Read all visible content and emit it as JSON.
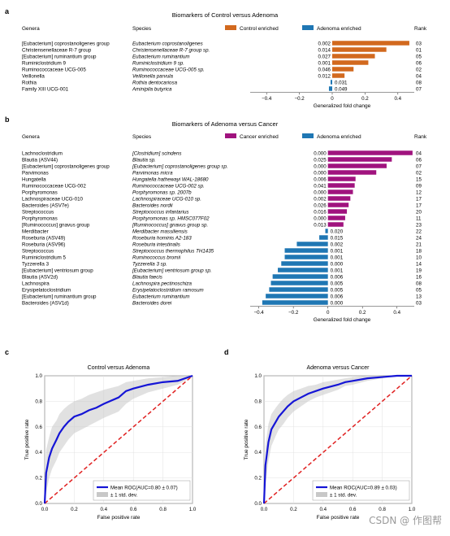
{
  "watermark": "CSDN @ 作图帮",
  "panels": {
    "a": {
      "letter": "a",
      "title": "Biomarkers of Control versus Adenoma",
      "headers": {
        "genera": "Genera",
        "species": "Species",
        "rank": "Rank"
      },
      "legend": [
        {
          "label": "Control enriched",
          "color": "#d2691e"
        },
        {
          "label": "Adenoma enriched",
          "color": "#1f77b4"
        }
      ],
      "xlabel": "Genera"
    },
    "b": {
      "letter": "b",
      "title": "Biomarkers of Adenoma versus Cancer",
      "headers": {
        "genera": "Genera",
        "species": "Species",
        "rank": "Rank"
      },
      "legend": [
        {
          "label": "Cancer enriched",
          "color": "#a0137e"
        },
        {
          "label": "Adenoma enriched",
          "color": "#1f77b4"
        }
      ]
    },
    "c": {
      "letter": "c"
    },
    "d": {
      "letter": "d"
    }
  },
  "chart_data": [
    {
      "type": "bar",
      "title": "Biomarkers of Control versus Adenoma",
      "xlabel": "Generalized fold change",
      "xlim": [
        -0.5,
        0.5
      ],
      "xticks": [
        -0.4,
        -0.2,
        0,
        0.2,
        0.4
      ],
      "positive_color": "#d2691e",
      "negative_color": "#1f77b4",
      "rows": [
        {
          "genus": "[Eubacterium] coprostanoligenes group",
          "species": "Eubacterium coprostanoligenes",
          "value": 0.47,
          "pvalue": "0.002",
          "rank": "03"
        },
        {
          "genus": "Christensenellaceae R-7 group",
          "species": "Christensenellaceae R-7 group sp.",
          "value": 0.33,
          "pvalue": "0.014",
          "rank": "01"
        },
        {
          "genus": "[Eubacterium] ruminantium group",
          "species": "Eubacterium ruminantium",
          "value": 0.26,
          "pvalue": "0.027",
          "rank": "05"
        },
        {
          "genus": "Ruminiclostridium 9",
          "species": "Ruminiclostridium 9 sp.",
          "value": 0.22,
          "pvalue": "0.001",
          "rank": "06"
        },
        {
          "genus": "Ruminococcaceae UCG-005",
          "species": "Ruminococcaceae UCG-005 sp.",
          "value": 0.13,
          "pvalue": "0.046",
          "rank": "02"
        },
        {
          "genus": "Veillonella",
          "species": "Veillonella parvula",
          "value": 0.075,
          "pvalue": "0.012",
          "rank": "04"
        },
        {
          "genus": "Rothia",
          "species": "Rothia dentocariosa",
          "value": -0.01,
          "pvalue": "0.031",
          "rank": "08"
        },
        {
          "genus": "Family XIII UCG-001",
          "species": "Aminipila butyrica",
          "value": -0.02,
          "pvalue": "0.049",
          "rank": "07"
        }
      ]
    },
    {
      "type": "bar",
      "title": "Biomarkers of Adenoma versus Cancer",
      "xlabel": "Generalized fold change",
      "xlim": [
        -0.45,
        0.5
      ],
      "xticks": [
        -0.4,
        -0.2,
        0,
        0.2,
        0.4
      ],
      "positive_color": "#a0137e",
      "negative_color": "#1f77b4",
      "rows": [
        {
          "genus": "Lachnoclostridium",
          "species": "[Clostridium] scindens",
          "value": 0.49,
          "pvalue": "0.000",
          "rank": "04"
        },
        {
          "genus": "Blautia (ASV44)",
          "species": "Blautia sp.",
          "value": 0.37,
          "pvalue": "0.025",
          "rank": "06"
        },
        {
          "genus": "[Eubacterium] coprostanoligenes group",
          "species": "[Eubacterium] coprostanoligenes group sp.",
          "value": 0.34,
          "pvalue": "0.000",
          "rank": "07"
        },
        {
          "genus": "Parvimonas",
          "species": "Parvimonas micra",
          "value": 0.28,
          "pvalue": "0.000",
          "rank": "02"
        },
        {
          "genus": "Hungatella",
          "species": "Hungatella hathewayi WAL-18680",
          "value": 0.16,
          "pvalue": "0.006",
          "rank": "15"
        },
        {
          "genus": "Ruminococcaceae UCG-002",
          "species": "Ruminococcaceae UCG-002 sp.",
          "value": 0.155,
          "pvalue": "0.041",
          "rank": "09"
        },
        {
          "genus": "Porphyromonas",
          "species": "Porphyromonas sp. 2007b",
          "value": 0.145,
          "pvalue": "0.000",
          "rank": "12"
        },
        {
          "genus": "Lachnospiraceae UCG-010",
          "species": "Lachnospiraceae UCG-010 sp.",
          "value": 0.13,
          "pvalue": "0.002",
          "rank": "17"
        },
        {
          "genus": "Bacteroides (ASV7e)",
          "species": "Bacteroides nordii",
          "value": 0.12,
          "pvalue": "0.026",
          "rank": "17"
        },
        {
          "genus": "Streptococcus",
          "species": "Streptococcus infantarius",
          "value": 0.11,
          "pvalue": "0.016",
          "rank": "20"
        },
        {
          "genus": "Porphyromonas",
          "species": "Porphyromonas sp. HMSC077F02",
          "value": 0.1,
          "pvalue": "0.000",
          "rank": "11"
        },
        {
          "genus": "[Ruminococcus] gnavus group",
          "species": "[Ruminococcus] gnavus group sp.",
          "value": 0.09,
          "pvalue": "0.013",
          "rank": "23"
        },
        {
          "genus": "Merdibacter",
          "species": "Merdibacter massiliensis",
          "value": -0.015,
          "pvalue": "0.020",
          "rank": "22"
        },
        {
          "genus": "Roseburia (ASV49)",
          "species": "Roseburia hominis A2-183",
          "value": -0.05,
          "pvalue": "0.015",
          "rank": "24"
        },
        {
          "genus": "Roseburia (ASV96)",
          "species": "Roseburia intestinalis",
          "value": -0.18,
          "pvalue": "0.002",
          "rank": "21"
        },
        {
          "genus": "Streptococcus",
          "species": "Streptococcus thermophilus TH1435",
          "value": -0.25,
          "pvalue": "0.001",
          "rank": "18"
        },
        {
          "genus": "Ruminiclostridium 5",
          "species": "Ruminococcus bromii",
          "value": -0.25,
          "pvalue": "0.001",
          "rank": "10"
        },
        {
          "genus": "Tyzzerella 3",
          "species": "Tyzzerella 3 sp.",
          "value": -0.27,
          "pvalue": "0.000",
          "rank": "14"
        },
        {
          "genus": "[Eubacterium] ventriosum group",
          "species": "[Eubacterium] ventriosum group sp.",
          "value": -0.29,
          "pvalue": "0.001",
          "rank": "19"
        },
        {
          "genus": "Blautia (ASV2d)",
          "species": "Blautia faecis",
          "value": -0.32,
          "pvalue": "0.006",
          "rank": "16"
        },
        {
          "genus": "Lachnospira",
          "species": "Lachnospira pectinoschiza",
          "value": -0.33,
          "pvalue": "0.005",
          "rank": "08"
        },
        {
          "genus": "Erysipelatoclostridium",
          "species": "Erysipelatoclostridium ramosum",
          "value": -0.34,
          "pvalue": "0.005",
          "rank": "05"
        },
        {
          "genus": "[Eubacterium] ruminantium group",
          "species": "Eubacterium ruminantium",
          "value": -0.36,
          "pvalue": "0.006",
          "rank": "13"
        },
        {
          "genus": "Bacteroides (ASV1d)",
          "species": "Bacteroides dorei",
          "value": -0.38,
          "pvalue": "0.000",
          "rank": "03"
        }
      ]
    },
    {
      "type": "line",
      "title": "Control versus Adenoma",
      "xlabel": "False positive rate",
      "ylabel": "True positive rate",
      "xlim": [
        0,
        1
      ],
      "ylim": [
        0,
        1
      ],
      "ticks": [
        0.0,
        0.2,
        0.4,
        0.6,
        0.8,
        1.0
      ],
      "legend": [
        "Mean ROC(AUC=0.80 ± 0.07)",
        "± 1 std. dev."
      ],
      "mean_color": "#1515d6",
      "chance_color": "#e02020",
      "mean_roc": {
        "x": [
          0,
          0.01,
          0.03,
          0.05,
          0.08,
          0.1,
          0.13,
          0.16,
          0.2,
          0.25,
          0.3,
          0.35,
          0.4,
          0.5,
          0.55,
          0.6,
          0.7,
          0.8,
          0.9,
          0.95,
          1.0
        ],
        "y": [
          0,
          0.24,
          0.36,
          0.43,
          0.5,
          0.55,
          0.6,
          0.64,
          0.68,
          0.7,
          0.73,
          0.75,
          0.78,
          0.83,
          0.88,
          0.9,
          0.93,
          0.95,
          0.96,
          0.98,
          1.0
        ]
      },
      "std_upper": [
        0.05,
        0.42,
        0.52,
        0.6,
        0.65,
        0.7,
        0.74,
        0.77,
        0.8,
        0.82,
        0.85,
        0.87,
        0.89,
        0.92,
        0.95,
        0.96,
        0.98,
        0.99,
        1.0,
        1.0,
        1.0
      ],
      "std_lower": [
        0,
        0.08,
        0.2,
        0.27,
        0.34,
        0.4,
        0.45,
        0.5,
        0.55,
        0.58,
        0.61,
        0.64,
        0.67,
        0.72,
        0.78,
        0.82,
        0.87,
        0.9,
        0.93,
        0.96,
        1.0
      ]
    },
    {
      "type": "line",
      "title": "Adenoma versus Cancer",
      "xlabel": "False positive rate",
      "ylabel": "True positive rate",
      "xlim": [
        0,
        1
      ],
      "ylim": [
        0,
        1
      ],
      "ticks": [
        0.0,
        0.2,
        0.4,
        0.6,
        0.8,
        1.0
      ],
      "legend": [
        "Mean ROC(AUC=0.89 ± 0.03)",
        "± 1 std. dev."
      ],
      "mean_color": "#1515d6",
      "chance_color": "#e02020",
      "mean_roc": {
        "x": [
          0,
          0.01,
          0.03,
          0.05,
          0.08,
          0.1,
          0.13,
          0.16,
          0.2,
          0.25,
          0.3,
          0.35,
          0.4,
          0.5,
          0.55,
          0.6,
          0.7,
          0.8,
          0.9,
          0.95,
          1.0
        ],
        "y": [
          0,
          0.3,
          0.48,
          0.58,
          0.64,
          0.68,
          0.72,
          0.76,
          0.8,
          0.83,
          0.86,
          0.88,
          0.9,
          0.93,
          0.95,
          0.96,
          0.98,
          0.99,
          1.0,
          1.0,
          1.0
        ]
      },
      "std_upper": [
        0.05,
        0.45,
        0.62,
        0.7,
        0.75,
        0.78,
        0.82,
        0.85,
        0.88,
        0.9,
        0.92,
        0.93,
        0.95,
        0.97,
        0.98,
        0.99,
        1.0,
        1.0,
        1.0,
        1.0,
        1.0
      ],
      "std_lower": [
        0,
        0.15,
        0.33,
        0.45,
        0.53,
        0.58,
        0.62,
        0.67,
        0.72,
        0.76,
        0.8,
        0.83,
        0.85,
        0.89,
        0.92,
        0.93,
        0.96,
        0.98,
        1.0,
        1.0,
        1.0
      ]
    }
  ]
}
